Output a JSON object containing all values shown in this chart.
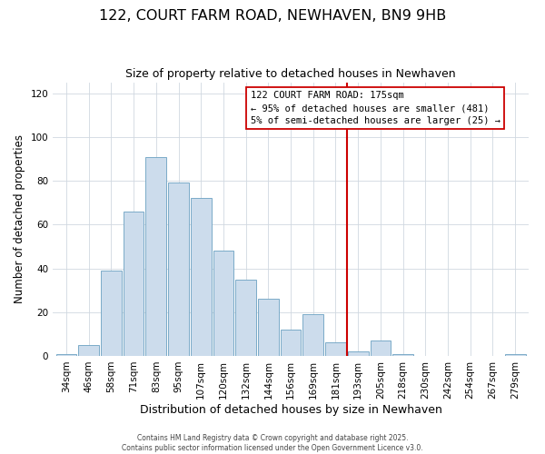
{
  "title": "122, COURT FARM ROAD, NEWHAVEN, BN9 9HB",
  "subtitle": "Size of property relative to detached houses in Newhaven",
  "xlabel": "Distribution of detached houses by size in Newhaven",
  "ylabel": "Number of detached properties",
  "bar_labels": [
    "34sqm",
    "46sqm",
    "58sqm",
    "71sqm",
    "83sqm",
    "95sqm",
    "107sqm",
    "120sqm",
    "132sqm",
    "144sqm",
    "156sqm",
    "169sqm",
    "181sqm",
    "193sqm",
    "205sqm",
    "218sqm",
    "230sqm",
    "242sqm",
    "254sqm",
    "267sqm",
    "279sqm"
  ],
  "bar_values": [
    1,
    5,
    39,
    66,
    91,
    79,
    72,
    48,
    35,
    26,
    12,
    19,
    6,
    2,
    7,
    1,
    0,
    0,
    0,
    0,
    1
  ],
  "bar_color": "#ccdcec",
  "bar_edge_color": "#7aaac8",
  "grid_color": "#d0d8e0",
  "bg_color": "#ffffff",
  "vline_x": 12.5,
  "vline_color": "#cc0000",
  "annotation_line1": "122 COURT FARM ROAD: 175sqm",
  "annotation_line2": "← 95% of detached houses are smaller (481)",
  "annotation_line3": "5% of semi-detached houses are larger (25) →",
  "footer1": "Contains HM Land Registry data © Crown copyright and database right 2025.",
  "footer2": "Contains public sector information licensed under the Open Government Licence v3.0.",
  "ylim": [
    0,
    125
  ],
  "yticks": [
    0,
    20,
    40,
    60,
    80,
    100,
    120
  ],
  "title_fontsize": 11.5,
  "subtitle_fontsize": 9,
  "xlabel_fontsize": 9,
  "ylabel_fontsize": 8.5,
  "tick_fontsize": 7.5,
  "footer_fontsize": 5.5,
  "annot_fontsize": 7.5
}
